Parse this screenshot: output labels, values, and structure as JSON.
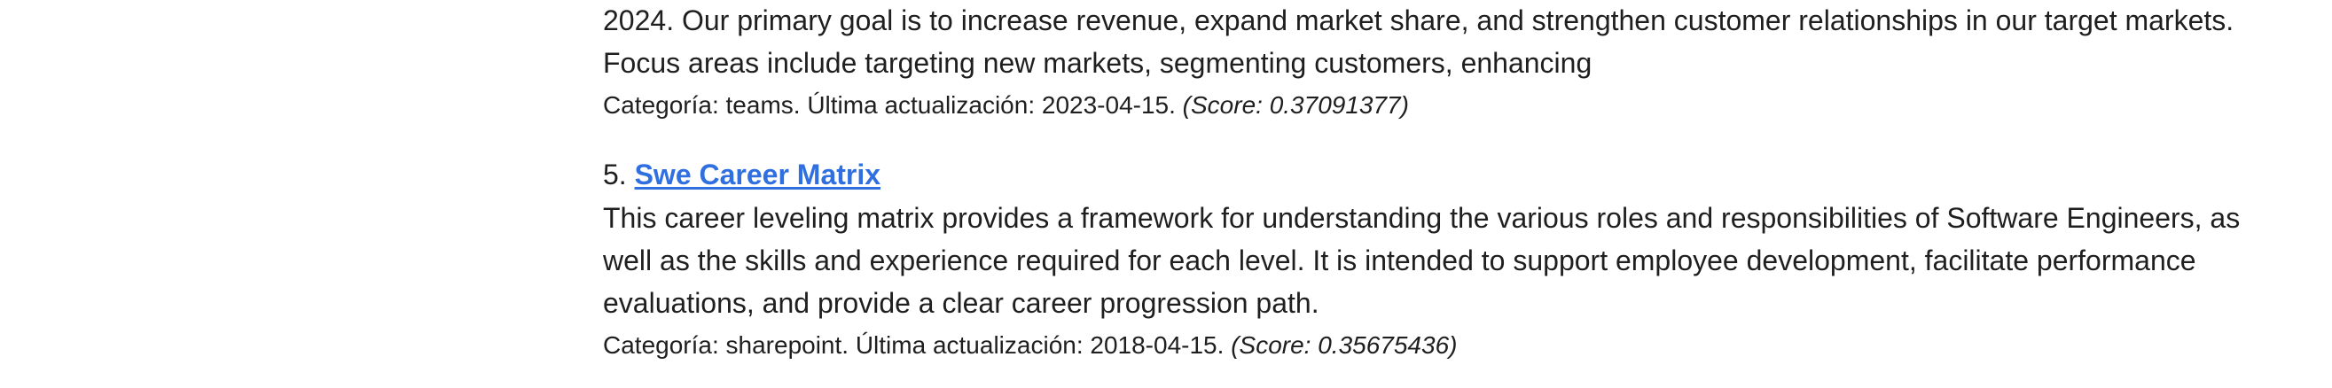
{
  "results": [
    {
      "description_lines": [
        "2024. Our primary goal is to increase revenue, expand market share, and strengthen customer relationships in our target markets.",
        "Focus areas include targeting new markets, segmenting customers, enhancing"
      ],
      "meta": "Categoría: teams. Última actualización: 2023-04-15.",
      "score": "(Score: 0.37091377)"
    },
    {
      "index": "5.",
      "title": "Swe Career Matrix",
      "description_lines": [
        "This career leveling matrix provides a framework for understanding the various roles and responsibilities of Software Engineers, as",
        "well as the skills and experience required for each level. It is intended to support employee development, facilitate performance",
        "evaluations, and provide a clear career progression path."
      ],
      "meta": "Categoría: sharepoint. Última actualización: 2018-04-15.",
      "score": "(Score: 0.35675436)"
    }
  ]
}
